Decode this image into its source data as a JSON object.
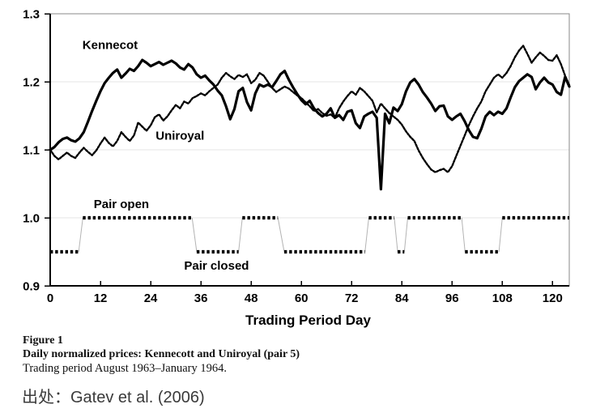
{
  "chart_data": {
    "type": "line",
    "title": "Daily normalized prices: Kennecott and Uniroyal (pair 5)",
    "xlabel": "Trading Period Day",
    "ylabel": "",
    "xlim": [
      0,
      124
    ],
    "ylim": [
      0.9,
      1.3
    ],
    "x_ticks": [
      0,
      12,
      24,
      36,
      48,
      60,
      72,
      84,
      96,
      108,
      120
    ],
    "y_ticks": [
      0.9,
      1.0,
      1.1,
      1.2,
      1.3
    ],
    "grid": "faint horizontal at 1.0 1.1 1.2",
    "legend_position": "in-plot text labels",
    "colors": {
      "line": "#000000",
      "connector": "#b3b3b3",
      "grid": "#e4e4e4"
    },
    "series": [
      {
        "name": "Kennecot",
        "style": "solid",
        "points": [
          [
            0,
            1.1
          ],
          [
            1,
            1.104
          ],
          [
            2,
            1.111
          ],
          [
            3,
            1.116
          ],
          [
            4,
            1.118
          ],
          [
            5,
            1.114
          ],
          [
            6,
            1.112
          ],
          [
            7,
            1.117
          ],
          [
            8,
            1.126
          ],
          [
            9,
            1.141
          ],
          [
            10,
            1.157
          ],
          [
            11,
            1.172
          ],
          [
            12,
            1.186
          ],
          [
            13,
            1.198
          ],
          [
            14,
            1.206
          ],
          [
            15,
            1.213
          ],
          [
            16,
            1.218
          ],
          [
            17,
            1.206
          ],
          [
            18,
            1.212
          ],
          [
            19,
            1.219
          ],
          [
            20,
            1.216
          ],
          [
            21,
            1.223
          ],
          [
            22,
            1.232
          ],
          [
            23,
            1.228
          ],
          [
            24,
            1.223
          ],
          [
            25,
            1.226
          ],
          [
            26,
            1.229
          ],
          [
            27,
            1.225
          ],
          [
            28,
            1.228
          ],
          [
            29,
            1.231
          ],
          [
            30,
            1.227
          ],
          [
            31,
            1.221
          ],
          [
            32,
            1.218
          ],
          [
            33,
            1.226
          ],
          [
            34,
            1.221
          ],
          [
            35,
            1.211
          ],
          [
            36,
            1.206
          ],
          [
            37,
            1.209
          ],
          [
            38,
            1.202
          ],
          [
            39,
            1.196
          ],
          [
            40,
            1.187
          ],
          [
            41,
            1.18
          ],
          [
            42,
            1.164
          ],
          [
            43,
            1.145
          ],
          [
            44,
            1.16
          ],
          [
            45,
            1.186
          ],
          [
            46,
            1.191
          ],
          [
            47,
            1.17
          ],
          [
            48,
            1.158
          ],
          [
            49,
            1.183
          ],
          [
            50,
            1.196
          ],
          [
            51,
            1.193
          ],
          [
            52,
            1.196
          ],
          [
            53,
            1.192
          ],
          [
            54,
            1.201
          ],
          [
            55,
            1.211
          ],
          [
            56,
            1.216
          ],
          [
            57,
            1.203
          ],
          [
            58,
            1.192
          ],
          [
            59,
            1.182
          ],
          [
            60,
            1.173
          ],
          [
            61,
            1.167
          ],
          [
            62,
            1.172
          ],
          [
            63,
            1.161
          ],
          [
            64,
            1.154
          ],
          [
            65,
            1.149
          ],
          [
            66,
            1.153
          ],
          [
            67,
            1.161
          ],
          [
            68,
            1.147
          ],
          [
            69,
            1.151
          ],
          [
            70,
            1.144
          ],
          [
            71,
            1.156
          ],
          [
            72,
            1.158
          ],
          [
            73,
            1.139
          ],
          [
            74,
            1.132
          ],
          [
            75,
            1.149
          ],
          [
            76,
            1.153
          ],
          [
            77,
            1.156
          ],
          [
            78,
            1.147
          ],
          [
            79,
            1.042
          ],
          [
            80,
            1.153
          ],
          [
            81,
            1.139
          ],
          [
            82,
            1.162
          ],
          [
            83,
            1.157
          ],
          [
            84,
            1.167
          ],
          [
            85,
            1.186
          ],
          [
            86,
            1.199
          ],
          [
            87,
            1.204
          ],
          [
            88,
            1.196
          ],
          [
            89,
            1.185
          ],
          [
            90,
            1.177
          ],
          [
            91,
            1.168
          ],
          [
            92,
            1.157
          ],
          [
            93,
            1.164
          ],
          [
            94,
            1.165
          ],
          [
            95,
            1.149
          ],
          [
            96,
            1.144
          ],
          [
            97,
            1.149
          ],
          [
            98,
            1.153
          ],
          [
            99,
            1.142
          ],
          [
            100,
            1.129
          ],
          [
            101,
            1.119
          ],
          [
            102,
            1.117
          ],
          [
            103,
            1.131
          ],
          [
            104,
            1.149
          ],
          [
            105,
            1.156
          ],
          [
            106,
            1.151
          ],
          [
            107,
            1.156
          ],
          [
            108,
            1.153
          ],
          [
            109,
            1.161
          ],
          [
            110,
            1.177
          ],
          [
            111,
            1.192
          ],
          [
            112,
            1.201
          ],
          [
            113,
            1.206
          ],
          [
            114,
            1.211
          ],
          [
            115,
            1.207
          ],
          [
            116,
            1.189
          ],
          [
            117,
            1.199
          ],
          [
            118,
            1.206
          ],
          [
            119,
            1.199
          ],
          [
            120,
            1.196
          ],
          [
            121,
            1.185
          ],
          [
            122,
            1.181
          ],
          [
            123,
            1.207
          ],
          [
            124,
            1.193
          ]
        ]
      },
      {
        "name": "Uniroyal",
        "style": "dotted",
        "points": [
          [
            0,
            1.1
          ],
          [
            1,
            1.091
          ],
          [
            2,
            1.086
          ],
          [
            3,
            1.091
          ],
          [
            4,
            1.096
          ],
          [
            5,
            1.091
          ],
          [
            6,
            1.088
          ],
          [
            7,
            1.096
          ],
          [
            8,
            1.103
          ],
          [
            9,
            1.097
          ],
          [
            10,
            1.092
          ],
          [
            11,
            1.099
          ],
          [
            12,
            1.109
          ],
          [
            13,
            1.118
          ],
          [
            14,
            1.11
          ],
          [
            15,
            1.105
          ],
          [
            16,
            1.113
          ],
          [
            17,
            1.126
          ],
          [
            18,
            1.119
          ],
          [
            19,
            1.113
          ],
          [
            20,
            1.121
          ],
          [
            21,
            1.14
          ],
          [
            22,
            1.134
          ],
          [
            23,
            1.128
          ],
          [
            24,
            1.136
          ],
          [
            25,
            1.148
          ],
          [
            26,
            1.152
          ],
          [
            27,
            1.143
          ],
          [
            28,
            1.149
          ],
          [
            29,
            1.158
          ],
          [
            30,
            1.166
          ],
          [
            31,
            1.161
          ],
          [
            32,
            1.171
          ],
          [
            33,
            1.168
          ],
          [
            34,
            1.176
          ],
          [
            35,
            1.179
          ],
          [
            36,
            1.183
          ],
          [
            37,
            1.18
          ],
          [
            38,
            1.186
          ],
          [
            39,
            1.191
          ],
          [
            40,
            1.196
          ],
          [
            41,
            1.206
          ],
          [
            42,
            1.213
          ],
          [
            43,
            1.208
          ],
          [
            44,
            1.204
          ],
          [
            45,
            1.21
          ],
          [
            46,
            1.207
          ],
          [
            47,
            1.211
          ],
          [
            48,
            1.198
          ],
          [
            49,
            1.203
          ],
          [
            50,
            1.213
          ],
          [
            51,
            1.209
          ],
          [
            52,
            1.2
          ],
          [
            53,
            1.191
          ],
          [
            54,
            1.185
          ],
          [
            55,
            1.189
          ],
          [
            56,
            1.193
          ],
          [
            57,
            1.19
          ],
          [
            58,
            1.185
          ],
          [
            59,
            1.18
          ],
          [
            60,
            1.176
          ],
          [
            61,
            1.17
          ],
          [
            62,
            1.164
          ],
          [
            63,
            1.157
          ],
          [
            64,
            1.16
          ],
          [
            65,
            1.154
          ],
          [
            66,
            1.15
          ],
          [
            67,
            1.152
          ],
          [
            68,
            1.147
          ],
          [
            69,
            1.161
          ],
          [
            70,
            1.171
          ],
          [
            71,
            1.179
          ],
          [
            72,
            1.186
          ],
          [
            73,
            1.181
          ],
          [
            74,
            1.191
          ],
          [
            75,
            1.186
          ],
          [
            76,
            1.179
          ],
          [
            77,
            1.172
          ],
          [
            78,
            1.155
          ],
          [
            79,
            1.168
          ],
          [
            80,
            1.161
          ],
          [
            81,
            1.154
          ],
          [
            82,
            1.149
          ],
          [
            83,
            1.144
          ],
          [
            84,
            1.137
          ],
          [
            85,
            1.127
          ],
          [
            86,
            1.119
          ],
          [
            87,
            1.113
          ],
          [
            88,
            1.099
          ],
          [
            89,
            1.088
          ],
          [
            90,
            1.079
          ],
          [
            91,
            1.071
          ],
          [
            92,
            1.067
          ],
          [
            93,
            1.07
          ],
          [
            94,
            1.072
          ],
          [
            95,
            1.067
          ],
          [
            96,
            1.076
          ],
          [
            97,
            1.091
          ],
          [
            98,
            1.106
          ],
          [
            99,
            1.121
          ],
          [
            100,
            1.136
          ],
          [
            101,
            1.149
          ],
          [
            102,
            1.161
          ],
          [
            103,
            1.171
          ],
          [
            104,
            1.186
          ],
          [
            105,
            1.196
          ],
          [
            106,
            1.206
          ],
          [
            107,
            1.211
          ],
          [
            108,
            1.206
          ],
          [
            109,
            1.213
          ],
          [
            110,
            1.223
          ],
          [
            111,
            1.236
          ],
          [
            112,
            1.246
          ],
          [
            113,
            1.253
          ],
          [
            114,
            1.241
          ],
          [
            115,
            1.228
          ],
          [
            116,
            1.236
          ],
          [
            117,
            1.243
          ],
          [
            118,
            1.238
          ],
          [
            119,
            1.232
          ],
          [
            120,
            1.231
          ],
          [
            121,
            1.239
          ],
          [
            122,
            1.226
          ],
          [
            123,
            1.209
          ],
          [
            124,
            1.195
          ]
        ]
      }
    ],
    "pair_state": {
      "open_value": 1.0,
      "closed_value": 0.95,
      "segments": [
        {
          "state": "closed",
          "start": 0,
          "end": 6.8
        },
        {
          "state": "open",
          "start": 7.8,
          "end": 33.9
        },
        {
          "state": "closed",
          "start": 35.0,
          "end": 45.0
        },
        {
          "state": "open",
          "start": 45.9,
          "end": 54.4
        },
        {
          "state": "closed",
          "start": 55.9,
          "end": 75.2
        },
        {
          "state": "open",
          "start": 76.1,
          "end": 82.2
        },
        {
          "state": "closed",
          "start": 83.0,
          "end": 84.6
        },
        {
          "state": "open",
          "start": 85.4,
          "end": 98.3
        },
        {
          "state": "closed",
          "start": 99.1,
          "end": 107.2
        },
        {
          "state": "open",
          "start": 108.0,
          "end": 124.0
        }
      ]
    },
    "annotations": [
      {
        "text": "Kennecot",
        "x": 7.7,
        "y": 1.248
      },
      {
        "text": "Uniroyal",
        "x": 25.2,
        "y": 1.115
      },
      {
        "text": "Pair open",
        "x": 10.4,
        "y": 1.014
      },
      {
        "text": "Pair closed",
        "x": 32.0,
        "y": 0.924
      }
    ]
  },
  "caption": {
    "figure_label": "Figure 1",
    "title": "Daily normalized prices: Kennecott and Uniroyal (pair 5)",
    "subtitle": "Trading period August 1963–January 1964."
  },
  "source": {
    "text": "出处：Gatev et al. (2006)"
  }
}
